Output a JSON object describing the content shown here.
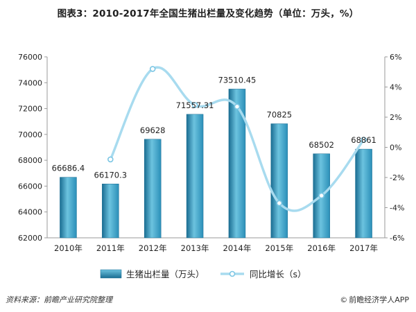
{
  "chart_data": {
    "type": "bar+line",
    "title": "图表3：2010-2017年全国生猪出栏量及变化趋势（单位：万头，%）",
    "categories": [
      "2010年",
      "2011年",
      "2012年",
      "2013年",
      "2014年",
      "2015年",
      "2016年",
      "2017年"
    ],
    "series": [
      {
        "name": "生猪出栏量（万头）",
        "type": "bar",
        "axis": "left",
        "values": [
          66686.4,
          66170.3,
          69628,
          71557.31,
          73510.45,
          70825,
          68502,
          68861
        ],
        "labels": [
          "66686.4",
          "66170.3",
          "69628",
          "71557.31",
          "73510.45",
          "70825",
          "68502",
          "68861"
        ]
      },
      {
        "name": "同比增长（s）",
        "type": "line",
        "axis": "right",
        "values": [
          null,
          -0.8,
          5.2,
          2.8,
          2.7,
          -3.7,
          -3.2,
          0.5
        ]
      }
    ],
    "y_left": {
      "min": 62000,
      "max": 76000,
      "ticks": [
        "62000",
        "64000",
        "66000",
        "68000",
        "70000",
        "72000",
        "74000",
        "76000"
      ]
    },
    "y_right": {
      "min": -6,
      "max": 6,
      "ticks": [
        "-6%",
        "-4%",
        "-2%",
        "0%",
        "2%",
        "4%",
        "6%"
      ]
    },
    "legend_position": "bottom",
    "grid": false,
    "colors": {
      "bar": "#2b8fb8",
      "bar_light": "#6cc3df",
      "bar_dark": "#1a6d92",
      "line": "#a8dbef",
      "marker": "#ffffff"
    }
  },
  "footer": {
    "source": "资料来源：前瞻产业研究院整理",
    "brand": "前瞻经济学人APP",
    "copyright_mark": "©"
  }
}
